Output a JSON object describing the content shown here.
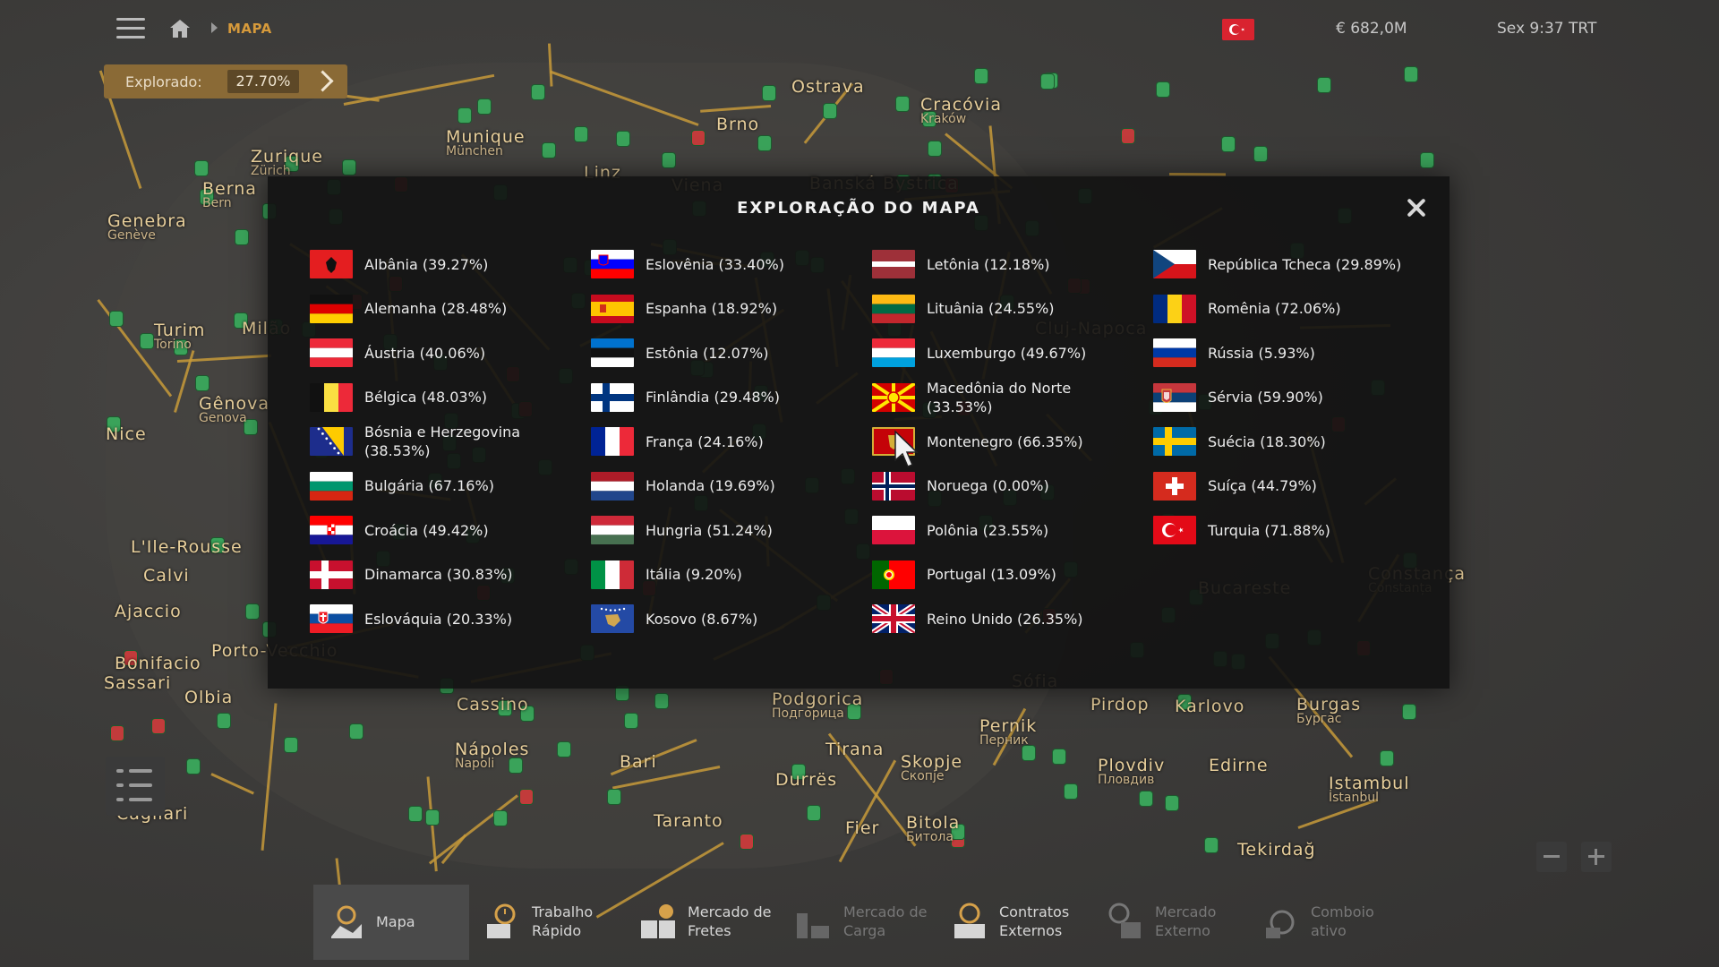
{
  "topbar": {
    "breadcrumb": "MAPA",
    "money": "€ 682,0M",
    "clock": "Sex 9:37 TRT",
    "flag_color": "#d9232f"
  },
  "explored": {
    "label": "Explorado:",
    "value": "27.70%",
    "progress": 27.7
  },
  "map_cities": [
    {
      "name": "Munique",
      "sub": "München"
    },
    {
      "name": "Zurique",
      "sub": "Zürich"
    },
    {
      "name": "Genebra",
      "sub": "Genève"
    },
    {
      "name": "Berna",
      "sub": "Bern"
    },
    {
      "name": "Turim",
      "sub": "Torino"
    },
    {
      "name": "Gênova",
      "sub": "Genova"
    },
    {
      "name": "Nice",
      "sub": ""
    },
    {
      "name": "Linz",
      "sub": ""
    },
    {
      "name": "Brno",
      "sub": ""
    },
    {
      "name": "Ostrava",
      "sub": ""
    },
    {
      "name": "Cracóvia",
      "sub": "Kraków"
    },
    {
      "name": "Ajaccio",
      "sub": ""
    },
    {
      "name": "Calvi",
      "sub": ""
    },
    {
      "name": "L'Ile-Rousse",
      "sub": ""
    },
    {
      "name": "Bonifacio",
      "sub": ""
    },
    {
      "name": "Sassari",
      "sub": ""
    },
    {
      "name": "Olbia",
      "sub": ""
    },
    {
      "name": "Porto-Vecchio",
      "sub": ""
    },
    {
      "name": "Cagliari",
      "sub": ""
    },
    {
      "name": "Cassino",
      "sub": ""
    },
    {
      "name": "Nápoles",
      "sub": "Napoli"
    },
    {
      "name": "Bari",
      "sub": ""
    },
    {
      "name": "Taranto",
      "sub": ""
    },
    {
      "name": "Durrës",
      "sub": ""
    },
    {
      "name": "Tirana",
      "sub": ""
    },
    {
      "name": "Podgorica",
      "sub": "Подгорица"
    },
    {
      "name": "Pernik",
      "sub": "Перник"
    },
    {
      "name": "Skopje",
      "sub": "Скопје"
    },
    {
      "name": "Bitola",
      "sub": "Битола"
    },
    {
      "name": "Plovdiv",
      "sub": "Пловдив"
    },
    {
      "name": "Edirne",
      "sub": ""
    },
    {
      "name": "Burgas",
      "sub": "Бургас"
    },
    {
      "name": "Istambul",
      "sub": "İstanbul"
    },
    {
      "name": "Tekirdağ",
      "sub": ""
    },
    {
      "name": "Constança",
      "sub": "Constanța"
    },
    {
      "name": "Cluj-Napoca",
      "sub": ""
    },
    {
      "name": "Bucareste",
      "sub": ""
    },
    {
      "name": "Sófia",
      "sub": ""
    },
    {
      "name": "Pirdop",
      "sub": ""
    },
    {
      "name": "Karlovo",
      "sub": ""
    },
    {
      "name": "Fier",
      "sub": ""
    },
    {
      "name": "Viena",
      "sub": ""
    },
    {
      "name": "Banská Bystrica",
      "sub": ""
    },
    {
      "name": "Milão",
      "sub": ""
    }
  ],
  "modal": {
    "title": "EXPLORAÇÃO DO MAPA",
    "columns": [
      [
        {
          "name": "Albânia (39.27%)",
          "flag": "albania"
        },
        {
          "name": "Alemanha (28.48%)",
          "flag": "germany"
        },
        {
          "name": "Áustria (40.06%)",
          "flag": "austria"
        },
        {
          "name": "Bélgica (48.03%)",
          "flag": "belgium"
        },
        {
          "name": "Bósnia e Herzegovina",
          "name2": "(38.53%)",
          "flag": "bosnia"
        },
        {
          "name": "Bulgária (67.16%)",
          "flag": "bulgaria"
        },
        {
          "name": "Croácia (49.42%)",
          "flag": "croatia"
        },
        {
          "name": "Dinamarca (30.83%)",
          "flag": "denmark"
        },
        {
          "name": "Eslováquia (20.33%)",
          "flag": "slovakia"
        }
      ],
      [
        {
          "name": "Eslovênia (33.40%)",
          "flag": "slovenia"
        },
        {
          "name": "Espanha (18.92%)",
          "flag": "spain"
        },
        {
          "name": "Estônia (12.07%)",
          "flag": "estonia"
        },
        {
          "name": "Finlândia (29.48%)",
          "flag": "finland"
        },
        {
          "name": "França (24.16%)",
          "flag": "france"
        },
        {
          "name": "Holanda (19.69%)",
          "flag": "netherlands"
        },
        {
          "name": "Hungria (51.24%)",
          "flag": "hungary"
        },
        {
          "name": "Itália (9.20%)",
          "flag": "italy"
        },
        {
          "name": "Kosovo (8.67%)",
          "flag": "kosovo"
        }
      ],
      [
        {
          "name": "Letônia (12.18%)",
          "flag": "latvia"
        },
        {
          "name": "Lituânia (24.55%)",
          "flag": "lithuania"
        },
        {
          "name": "Luxemburgo (49.67%)",
          "flag": "luxembourg"
        },
        {
          "name": "Macedônia do Norte (33.53%)",
          "flag": "north-macedonia"
        },
        {
          "name": "Montenegro (66.35%)",
          "flag": "montenegro"
        },
        {
          "name": "Noruega (0.00%)",
          "flag": "norway"
        },
        {
          "name": "Polônia (23.55%)",
          "flag": "poland"
        },
        {
          "name": "Portugal (13.09%)",
          "flag": "portugal"
        },
        {
          "name": "Reino Unido (26.35%)",
          "flag": "united-kingdom"
        }
      ],
      [
        {
          "name": "República Tcheca (29.89%)",
          "flag": "czech-republic"
        },
        {
          "name": "Romênia (72.06%)",
          "flag": "romania"
        },
        {
          "name": "Rússia (5.93%)",
          "flag": "russia"
        },
        {
          "name": "Sérvia (59.90%)",
          "flag": "serbia"
        },
        {
          "name": "Suécia (18.30%)",
          "flag": "sweden"
        },
        {
          "name": "Suíça (44.79%)",
          "flag": "switzerland"
        },
        {
          "name": "Turquia (71.88%)",
          "flag": "turkey"
        }
      ]
    ]
  },
  "bottomnav": {
    "tabs": [
      {
        "label1": "Mapa",
        "label2": "",
        "icon": "map-icon",
        "active": true,
        "dim": false
      },
      {
        "label1": "Trabalho",
        "label2": "Rápido",
        "icon": "quick-job-icon",
        "active": false,
        "dim": false
      },
      {
        "label1": "Mercado de",
        "label2": "Fretes",
        "icon": "freight-market-icon",
        "active": false,
        "dim": false
      },
      {
        "label1": "Mercado de",
        "label2": "Carga",
        "icon": "cargo-market-icon",
        "active": false,
        "dim": true
      },
      {
        "label1": "Contratos",
        "label2": "Externos",
        "icon": "external-contracts-icon",
        "active": false,
        "dim": false
      },
      {
        "label1": "Mercado",
        "label2": "Externo",
        "icon": "external-market-icon",
        "active": false,
        "dim": true
      },
      {
        "label1": "Comboio",
        "label2": "ativo",
        "icon": "convoy-icon",
        "active": false,
        "dim": true
      }
    ]
  }
}
